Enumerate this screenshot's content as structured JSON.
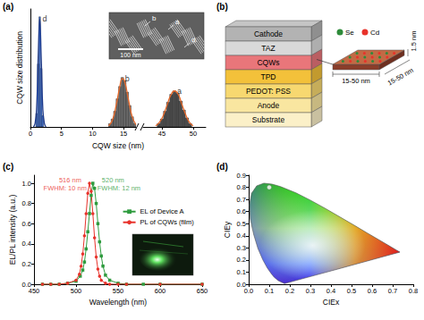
{
  "chart_data": [
    {
      "panel": "(a)",
      "type": "bar",
      "x_label": "CQW size (nm)",
      "y_label": "CQW size distribution",
      "xlim": [
        0,
        52
      ],
      "axis_break": [
        17,
        42
      ],
      "xticks": [
        0,
        5,
        10,
        15,
        45,
        50
      ],
      "ylim": [
        0,
        1.05
      ],
      "tick_labels": "x",
      "series": [
        {
          "name": "d",
          "color": "#3b6fd8",
          "x": [
            1.0,
            1.25,
            1.5,
            1.75,
            2.0
          ],
          "values": [
            0.12,
            0.56,
            0.98,
            0.52,
            0.1
          ],
          "fit": {
            "color": "#1e3a8a",
            "x": [
              0.5,
              0.75,
              1.0,
              1.25,
              1.5,
              1.75,
              2.0,
              2.25,
              2.5
            ],
            "values": [
              0.0,
              0.03,
              0.17,
              0.62,
              0.96,
              0.6,
              0.16,
              0.03,
              0.0
            ]
          }
        },
        {
          "name": "b",
          "color": "#6a6a6a",
          "x": [
            12.8,
            13.2,
            13.6,
            14.0,
            14.4,
            14.8,
            15.2,
            15.6,
            16.0,
            16.4,
            16.8
          ],
          "values": [
            0.03,
            0.07,
            0.14,
            0.25,
            0.36,
            0.44,
            0.41,
            0.31,
            0.19,
            0.09,
            0.03
          ],
          "fit": {
            "color": "#e8692a",
            "x": [
              12.6,
              13.2,
              13.8,
              14.4,
              14.8,
              15.2,
              15.8,
              16.4,
              17.0
            ],
            "values": [
              0.01,
              0.06,
              0.19,
              0.36,
              0.43,
              0.4,
              0.24,
              0.09,
              0.02
            ]
          }
        },
        {
          "name": "a",
          "color": "#4a4a4a",
          "x": [
            44.5,
            45.0,
            45.5,
            46.0,
            46.5,
            47.0,
            47.5,
            48.0,
            48.5,
            49.0,
            49.5
          ],
          "values": [
            0.03,
            0.07,
            0.14,
            0.22,
            0.29,
            0.32,
            0.3,
            0.23,
            0.15,
            0.08,
            0.03
          ],
          "fit": {
            "color": "#e8692a",
            "x": [
              44.0,
              44.6,
              45.2,
              45.8,
              46.4,
              47.0,
              47.6,
              48.2,
              48.8,
              49.4,
              50.0
            ],
            "values": [
              0.01,
              0.04,
              0.1,
              0.19,
              0.28,
              0.32,
              0.29,
              0.2,
              0.11,
              0.04,
              0.01
            ]
          }
        }
      ],
      "inset": {
        "labels": [
          "b",
          "a",
          "d"
        ],
        "scale_bar": "100 nm"
      }
    },
    {
      "panel": "(c)",
      "type": "line",
      "x_label": "Wavelength (nm)",
      "y_label": "EL/PL intensity (a.u.)",
      "xlim": [
        450,
        650
      ],
      "xticks": [
        450,
        500,
        550,
        600,
        650
      ],
      "ylim": [
        0,
        1.08
      ],
      "yticks": [
        {
          "value": 0,
          "label": "0.0"
        },
        0.2,
        0.4,
        0.6,
        0.8,
        {
          "value": 1,
          "label": "1.0"
        }
      ],
      "legend": "right",
      "series": [
        {
          "name": "EL of Device A",
          "color": "#2e9b3e",
          "marker": "square",
          "x": [
            460,
            470,
            480,
            490,
            500,
            505,
            508,
            510,
            512,
            514,
            516,
            518,
            520,
            522,
            524,
            526,
            528,
            530,
            532,
            535,
            540,
            550,
            560,
            580,
            600,
            650
          ],
          "values": [
            0,
            0,
            0,
            0.01,
            0.03,
            0.08,
            0.14,
            0.22,
            0.35,
            0.52,
            0.7,
            0.88,
            1.0,
            0.95,
            0.8,
            0.6,
            0.42,
            0.28,
            0.18,
            0.09,
            0.04,
            0.01,
            0,
            0,
            0,
            0
          ]
        },
        {
          "name": "PL of CQWs (film)",
          "color": "#e8322b",
          "marker": "circle",
          "x": [
            460,
            470,
            480,
            490,
            500,
            504,
            506,
            508,
            510,
            512,
            514,
            516,
            518,
            520,
            522,
            524,
            526,
            528,
            530,
            535,
            540,
            550,
            560,
            600,
            650
          ],
          "values": [
            0,
            0,
            0,
            0.01,
            0.04,
            0.1,
            0.18,
            0.3,
            0.48,
            0.7,
            0.9,
            1.0,
            0.92,
            0.7,
            0.46,
            0.27,
            0.15,
            0.08,
            0.04,
            0.01,
            0,
            0,
            0,
            0,
            0
          ]
        }
      ],
      "annotations": [
        {
          "text": "516 nm",
          "x": 493,
          "y": 1.03,
          "color": "#e8322b"
        },
        {
          "text": "FWHM: 10 nm",
          "x": 487,
          "y": 0.95,
          "color": "#e8322b"
        },
        {
          "text": "520 nm",
          "x": 544,
          "y": 1.03,
          "color": "#2e9b3e"
        },
        {
          "text": "FWHM: 12 nm",
          "x": 551,
          "y": 0.95,
          "color": "#2e9b3e"
        }
      ]
    },
    {
      "panel": "(d)",
      "type": "scatter",
      "x_label": "CIEx",
      "y_label": "CIEy",
      "xlim": [
        0,
        0.8
      ],
      "xticks": [
        {
          "value": 0,
          "label": "0.0"
        },
        0.1,
        0.2,
        0.3,
        0.4,
        0.5,
        0.6,
        0.7,
        0.8
      ],
      "ylim": [
        0,
        0.9
      ],
      "yticks": [
        {
          "value": 0,
          "label": "0.0"
        },
        0.1,
        0.2,
        0.3,
        0.4,
        0.5,
        0.6,
        0.7,
        0.8,
        0.9
      ],
      "locus": [
        [
          0.174,
          0.005
        ],
        [
          0.144,
          0.03
        ],
        [
          0.124,
          0.058
        ],
        [
          0.11,
          0.087
        ],
        [
          0.091,
          0.133
        ],
        [
          0.069,
          0.201
        ],
        [
          0.045,
          0.295
        ],
        [
          0.024,
          0.413
        ],
        [
          0.008,
          0.538
        ],
        [
          0.004,
          0.655
        ],
        [
          0.014,
          0.75
        ],
        [
          0.039,
          0.812
        ],
        [
          0.074,
          0.834
        ],
        [
          0.114,
          0.826
        ],
        [
          0.155,
          0.806
        ],
        [
          0.23,
          0.754
        ],
        [
          0.302,
          0.692
        ],
        [
          0.373,
          0.625
        ],
        [
          0.444,
          0.555
        ],
        [
          0.513,
          0.487
        ],
        [
          0.575,
          0.424
        ],
        [
          0.627,
          0.373
        ],
        [
          0.692,
          0.308
        ],
        [
          0.719,
          0.281
        ],
        [
          0.735,
          0.265
        ]
      ],
      "series": [
        {
          "color": "#ffffff",
          "marker": "circle",
          "x": [
            0.1
          ],
          "values": [
            0.8
          ]
        }
      ]
    }
  ],
  "diagram": {
    "panel": "(b)",
    "layers": [
      {
        "label": "Cathode",
        "color": "#b3b3b3"
      },
      {
        "label": "TAZ",
        "color": "#d9d9d9"
      },
      {
        "label": "CQWs",
        "color": "#e9767a"
      },
      {
        "label": "TPD",
        "color": "#f3c13a"
      },
      {
        "label": "PEDOT: PSS",
        "color": "#f7d870"
      },
      {
        "label": "Anode",
        "color": "#f9e6a0"
      },
      {
        "label": "Substrate",
        "color": "#fbf0c8"
      }
    ],
    "platelet": {
      "atoms": [
        {
          "label": "Se",
          "color": "#2e8b3a"
        },
        {
          "label": "Cd",
          "color": "#e8322b"
        }
      ],
      "width_labels": [
        "15-50 nm",
        "15-50 nm"
      ],
      "thickness_label": "1.5 nm"
    }
  }
}
